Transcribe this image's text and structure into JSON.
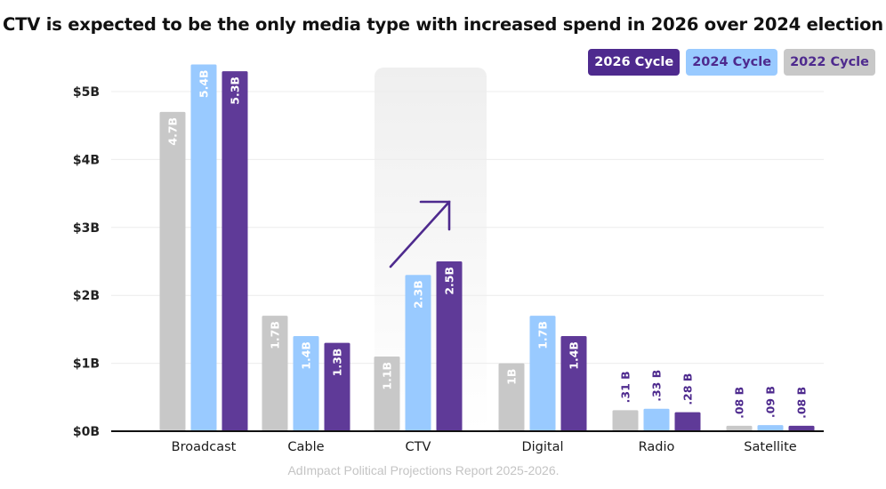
{
  "chart_data": {
    "type": "bar",
    "title": "CTV is expected to be the only media type with increased spend in 2026 over 2024 election",
    "source": "AdImpact Political Projections Report 2025-2026.",
    "xlabel": "",
    "ylabel": "",
    "categories": [
      "Broadcast",
      "Cable",
      "CTV",
      "Digital",
      "Radio",
      "Satellite"
    ],
    "y_ticks": [
      "$0B",
      "$1B",
      "$2B",
      "$3B",
      "$4B",
      "$5B"
    ],
    "ylim": [
      0,
      5.4
    ],
    "grid": true,
    "legend_position": "top-right",
    "highlight_category": "CTV",
    "highlight_annotation": "up-arrow",
    "series": [
      {
        "name": "2022 Cycle",
        "color": "#c8c8c8",
        "label_color": "#ffffff",
        "values": [
          4.7,
          1.7,
          1.1,
          1.0,
          0.31,
          0.08
        ],
        "labels": [
          "4.7B",
          "1.7B",
          "1.1B",
          "1B",
          ".31 B",
          ".08 B"
        ]
      },
      {
        "name": "2024 Cycle",
        "color": "#99caff",
        "label_color": "#ffffff",
        "values": [
          5.4,
          1.4,
          2.3,
          1.7,
          0.33,
          0.09
        ],
        "labels": [
          "5.4B",
          "1.4B",
          "2.3B",
          "1.7B",
          ".33 B",
          ".09 B"
        ]
      },
      {
        "name": "2026 Cycle",
        "color": "#5f3a98",
        "label_color": "#ffffff",
        "values": [
          5.3,
          1.3,
          2.5,
          1.4,
          0.28,
          0.08
        ],
        "labels": [
          "5.3B",
          "1.3B",
          "2.5B",
          "1.4B",
          ".28 B",
          ".08 B"
        ]
      }
    ],
    "legend": [
      {
        "label": "2026 Cycle",
        "bg": "#4e2a8e",
        "fg": "#ffffff"
      },
      {
        "label": "2024 Cycle",
        "bg": "#99caff",
        "fg": "#4e2a8e"
      },
      {
        "label": "2022 Cycle",
        "bg": "#c8c8c8",
        "fg": "#4e2a8e"
      }
    ],
    "outside_label_color": "#4e2a8e"
  }
}
